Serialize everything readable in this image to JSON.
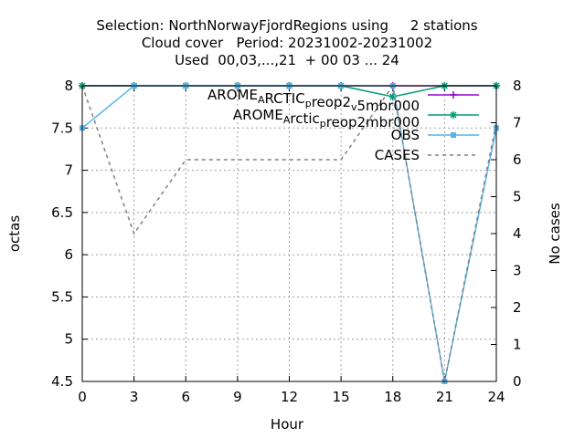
{
  "chart_data": {
    "type": "line",
    "title_lines": [
      "Selection: NorthNorwayFjordRegions using     2 stations",
      "Cloud cover   Period: 20231002-20231002",
      "Used  00,03,...,21  + 00 03 ... 24"
    ],
    "xlabel": "Hour",
    "ylabel": "octas",
    "y2label": "No cases",
    "xlim": [
      0,
      24
    ],
    "ylim": [
      4.5,
      8
    ],
    "y2lim": [
      0,
      8
    ],
    "xticks": [
      0,
      3,
      6,
      9,
      12,
      15,
      18,
      21,
      24
    ],
    "yticks": [
      "4.5",
      "5",
      "5.5",
      "6",
      "6.5",
      "7",
      "7.5",
      "8"
    ],
    "y2ticks": [
      0,
      1,
      2,
      3,
      4,
      5,
      6,
      7,
      8
    ],
    "grid": true,
    "legend_position": "top-right",
    "series": [
      {
        "name_parts": [
          [
            "AROME",
            ""
          ],
          [
            "A",
            "sub"
          ],
          [
            "RCTIC",
            ""
          ],
          [
            "p",
            "sub"
          ],
          [
            "reop2",
            ""
          ],
          [
            "v",
            "sub"
          ],
          [
            "5mbr000",
            ""
          ]
        ],
        "color": "#9400d3",
        "marker": "plus",
        "axis": "y",
        "x": [
          0,
          3,
          6,
          9,
          12,
          15,
          18,
          21,
          24
        ],
        "values": [
          8,
          8,
          8,
          8,
          8,
          8,
          8,
          8,
          8
        ]
      },
      {
        "name_parts": [
          [
            "AROME",
            ""
          ],
          [
            "A",
            "sub"
          ],
          [
            "rctic",
            ""
          ],
          [
            "p",
            "sub"
          ],
          [
            "reop2mbr000",
            ""
          ]
        ],
        "color": "#009e73",
        "marker": "star",
        "axis": "y",
        "x": [
          0,
          3,
          6,
          9,
          12,
          15,
          18,
          21,
          24
        ],
        "values": [
          8,
          8,
          8,
          8,
          8,
          8,
          7.87,
          8,
          8
        ]
      },
      {
        "name": "OBS",
        "color": "#56b4e9",
        "marker": "box",
        "axis": "y",
        "x": [
          0,
          3,
          6,
          9,
          12,
          15,
          18,
          21,
          24
        ],
        "values": [
          7.5,
          8,
          8,
          8,
          8,
          8,
          8,
          4.5,
          7.5
        ]
      },
      {
        "name": "CASES",
        "color": "#808080",
        "marker": "none",
        "dashed": true,
        "axis": "y2",
        "x": [
          0,
          3,
          6,
          9,
          12,
          15,
          18,
          21,
          24
        ],
        "values": [
          8,
          4,
          6,
          6,
          6,
          6,
          8,
          0,
          7
        ]
      }
    ]
  }
}
